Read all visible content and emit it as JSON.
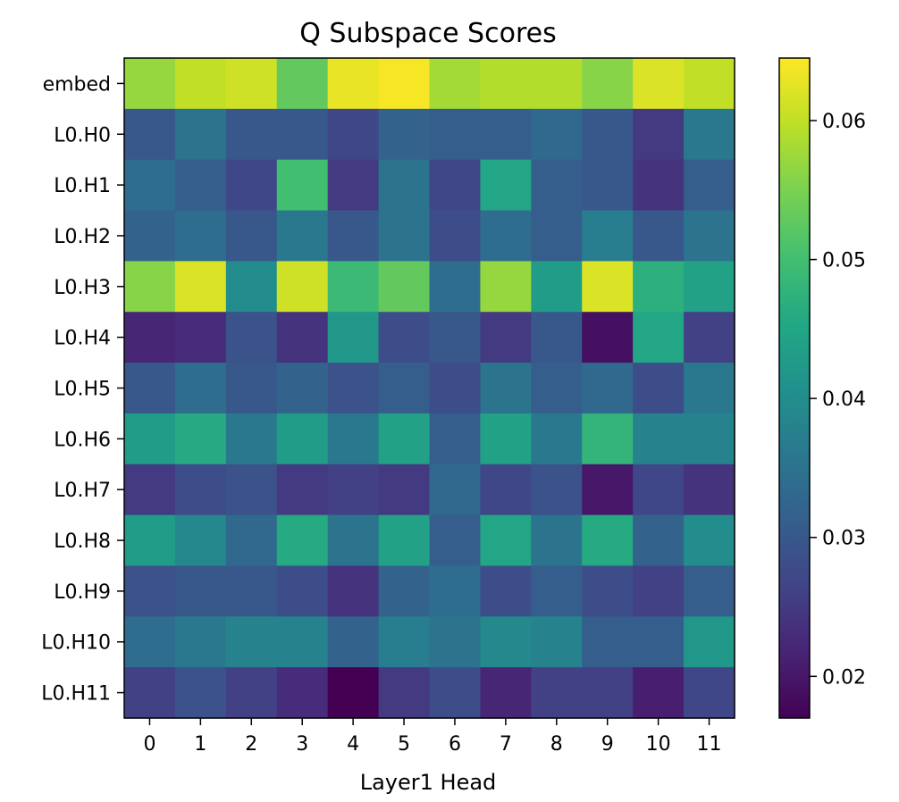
{
  "chart_data": {
    "type": "heatmap",
    "title": "Q Subspace Scores",
    "xlabel": "Layer1 Head",
    "ylabel": "",
    "x_categories": [
      "0",
      "1",
      "2",
      "3",
      "4",
      "5",
      "6",
      "7",
      "8",
      "9",
      "10",
      "11"
    ],
    "y_categories": [
      "embed",
      "L0.H0",
      "L0.H1",
      "L0.H2",
      "L0.H3",
      "L0.H4",
      "L0.H5",
      "L0.H6",
      "L0.H7",
      "L0.H8",
      "L0.H9",
      "L0.H10",
      "L0.H11"
    ],
    "values": [
      [
        0.057,
        0.06,
        0.061,
        0.053,
        0.063,
        0.064,
        0.058,
        0.059,
        0.059,
        0.056,
        0.062,
        0.06
      ],
      [
        0.03,
        0.035,
        0.03,
        0.03,
        0.027,
        0.032,
        0.031,
        0.031,
        0.033,
        0.03,
        0.025,
        0.036
      ],
      [
        0.034,
        0.031,
        0.027,
        0.05,
        0.025,
        0.035,
        0.027,
        0.045,
        0.031,
        0.03,
        0.024,
        0.031
      ],
      [
        0.032,
        0.034,
        0.03,
        0.036,
        0.03,
        0.035,
        0.028,
        0.034,
        0.031,
        0.037,
        0.03,
        0.035
      ],
      [
        0.056,
        0.062,
        0.04,
        0.061,
        0.049,
        0.053,
        0.034,
        0.057,
        0.043,
        0.062,
        0.047,
        0.044
      ],
      [
        0.022,
        0.023,
        0.029,
        0.024,
        0.042,
        0.028,
        0.03,
        0.025,
        0.03,
        0.019,
        0.045,
        0.026
      ],
      [
        0.03,
        0.034,
        0.03,
        0.032,
        0.029,
        0.031,
        0.028,
        0.035,
        0.031,
        0.033,
        0.028,
        0.036
      ],
      [
        0.043,
        0.046,
        0.036,
        0.043,
        0.036,
        0.044,
        0.031,
        0.044,
        0.036,
        0.048,
        0.038,
        0.038
      ],
      [
        0.025,
        0.028,
        0.029,
        0.025,
        0.026,
        0.025,
        0.033,
        0.027,
        0.029,
        0.02,
        0.027,
        0.024
      ],
      [
        0.043,
        0.039,
        0.033,
        0.046,
        0.035,
        0.044,
        0.031,
        0.045,
        0.035,
        0.046,
        0.032,
        0.04
      ],
      [
        0.029,
        0.03,
        0.03,
        0.028,
        0.024,
        0.032,
        0.034,
        0.028,
        0.031,
        0.028,
        0.026,
        0.031
      ],
      [
        0.034,
        0.036,
        0.038,
        0.038,
        0.032,
        0.037,
        0.035,
        0.039,
        0.038,
        0.031,
        0.031,
        0.042
      ],
      [
        0.026,
        0.029,
        0.026,
        0.023,
        0.017,
        0.025,
        0.028,
        0.022,
        0.026,
        0.026,
        0.021,
        0.027
      ]
    ],
    "colormap": "viridis",
    "vmin": 0.017,
    "vmax": 0.0645,
    "colorbar_ticks": [
      0.02,
      0.03,
      0.04,
      0.05,
      0.06
    ],
    "colorbar_tick_labels": [
      "0.02",
      "0.03",
      "0.04",
      "0.05",
      "0.06"
    ]
  }
}
